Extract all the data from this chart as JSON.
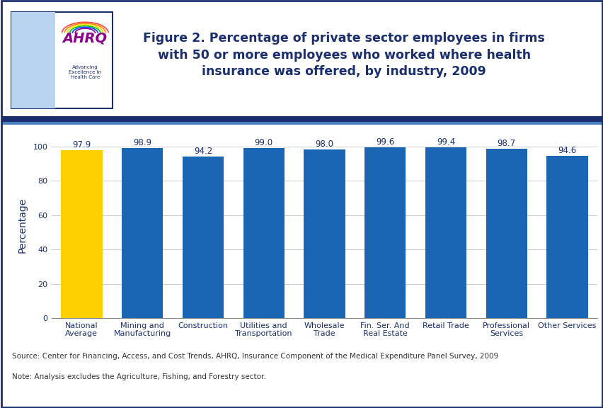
{
  "title": "Figure 2. Percentage of private sector employees in firms\nwith 50 or more employees who worked where health\ninsurance was offered, by industry, 2009",
  "categories": [
    "National\nAverage",
    "Mining and\nManufacturing",
    "Construction",
    "Utilities and\nTransportation",
    "Wholesale\nTrade",
    "Fin. Ser. And\nReal Estate",
    "Retail Trade",
    "Professional\nServices",
    "Other Services"
  ],
  "values": [
    97.9,
    98.9,
    94.2,
    99.0,
    98.0,
    99.6,
    99.4,
    98.7,
    94.6
  ],
  "bar_colors": [
    "#FFD000",
    "#1B65B5",
    "#1B65B5",
    "#1B65B5",
    "#1B65B5",
    "#1B65B5",
    "#1B65B5",
    "#1B65B5",
    "#1B65B5"
  ],
  "ylabel": "Percentage",
  "ylim": [
    0,
    108
  ],
  "yticks": [
    0,
    20,
    40,
    60,
    80,
    100
  ],
  "source_text": "Source: Center for Financing, Access, and Cost Trends, AHRQ, Insurance Component of the Medical Expenditure Panel Survey, 2009",
  "note_text": "Note: Analysis excludes the Agriculture, Fishing, and Forestry sector.",
  "title_color": "#1B2F6E",
  "axis_label_color": "#1B2F6E",
  "separator_color_thick": "#1B2F6E",
  "separator_color_thin": "#4A7FC0",
  "value_label_color": "#1B2F6E",
  "tick_label_color": "#1B2F6E",
  "footer_text_color": "#333333",
  "outer_border_color": "#1B2F6E",
  "title_fontsize": 12.5,
  "ylabel_fontsize": 10,
  "value_label_fontsize": 8.5,
  "tick_label_fontsize": 8,
  "footer_fontsize": 7.5
}
